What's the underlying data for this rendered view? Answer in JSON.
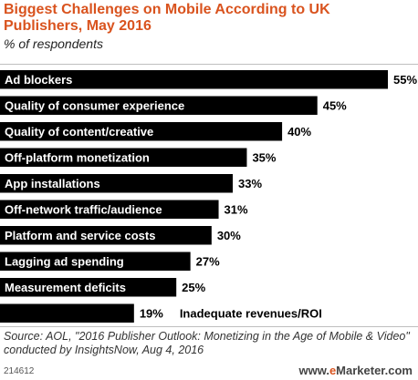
{
  "header": {
    "title": "Biggest Challenges on Mobile According to UK Publishers, May 2016",
    "subtitle": "% of respondents"
  },
  "chart_data": {
    "type": "bar",
    "orientation": "horizontal",
    "title": "Biggest Challenges on Mobile According to UK Publishers, May 2016",
    "subtitle": "% of respondents",
    "categories": [
      "Ad blockers",
      "Quality of consumer experience",
      "Quality of content/creative",
      "Off-platform monetization",
      "App installations",
      "Off-network traffic/audience",
      "Platform and service costs",
      "Lagging ad spending",
      "Measurement deficits",
      "Inadequate revenues/ROI"
    ],
    "values": [
      55,
      45,
      40,
      35,
      33,
      31,
      30,
      27,
      25,
      19
    ],
    "value_labels": [
      "55%",
      "45%",
      "40%",
      "35%",
      "33%",
      "31%",
      "30%",
      "27%",
      "25%",
      "19%"
    ],
    "xlim": [
      0,
      55
    ],
    "grid": false,
    "bar_color": "#000000"
  },
  "footer": {
    "source": "Source: AOL, \"2016 Publisher Outlook: Monetizing in the Age of Mobile & Video\" conducted by InsightsNow, Aug 4, 2016",
    "chart_id": "214612",
    "brand_prefix": "www.",
    "brand_e": "e",
    "brand_suffix": "Marketer.com"
  }
}
